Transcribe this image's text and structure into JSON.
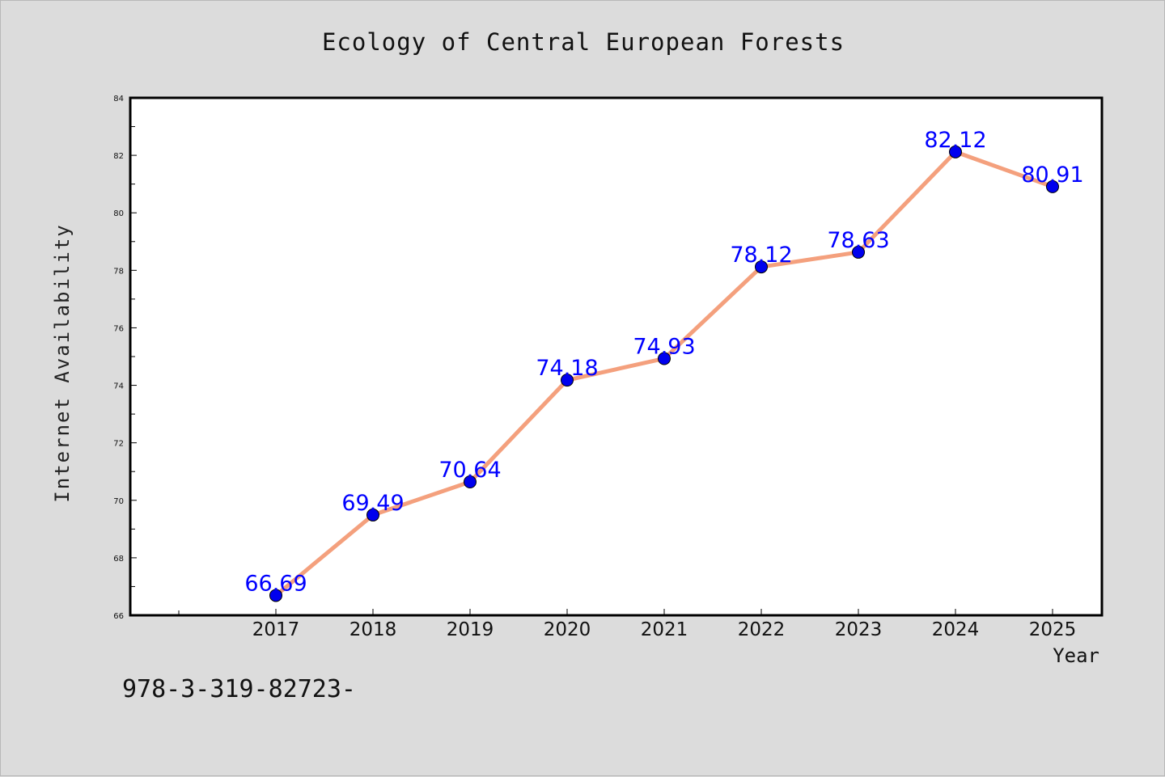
{
  "chart_data": {
    "type": "line",
    "title": "Ecology of Central European Forests",
    "xlabel": "Year",
    "ylabel": "Internet Availability",
    "categories": [
      "2017",
      "2018",
      "2019",
      "2020",
      "2021",
      "2022",
      "2023",
      "2024",
      "2025"
    ],
    "series": [
      {
        "values": [
          66.69,
          69.49,
          70.64,
          74.18,
          74.93,
          78.12,
          78.63,
          82.12,
          80.91
        ],
        "data_labels": [
          "66.69",
          "69.49",
          "70.64",
          "74.18",
          "74.93",
          "78.12",
          "78.63",
          "82.12",
          "80.91"
        ]
      }
    ],
    "ylim": [
      66,
      84
    ],
    "yticks": [
      "66",
      "68",
      "70",
      "72",
      "74",
      "76",
      "78",
      "80",
      "82",
      "84"
    ],
    "grid": false,
    "legend": "none"
  },
  "footnote": "978-3-319-82723-",
  "colors": {
    "line": "#f4a07d",
    "marker": "#0000ee",
    "data_label": "#0000ff",
    "plot_bg": "#ffffff",
    "page_bg": "#dcdcdc"
  }
}
